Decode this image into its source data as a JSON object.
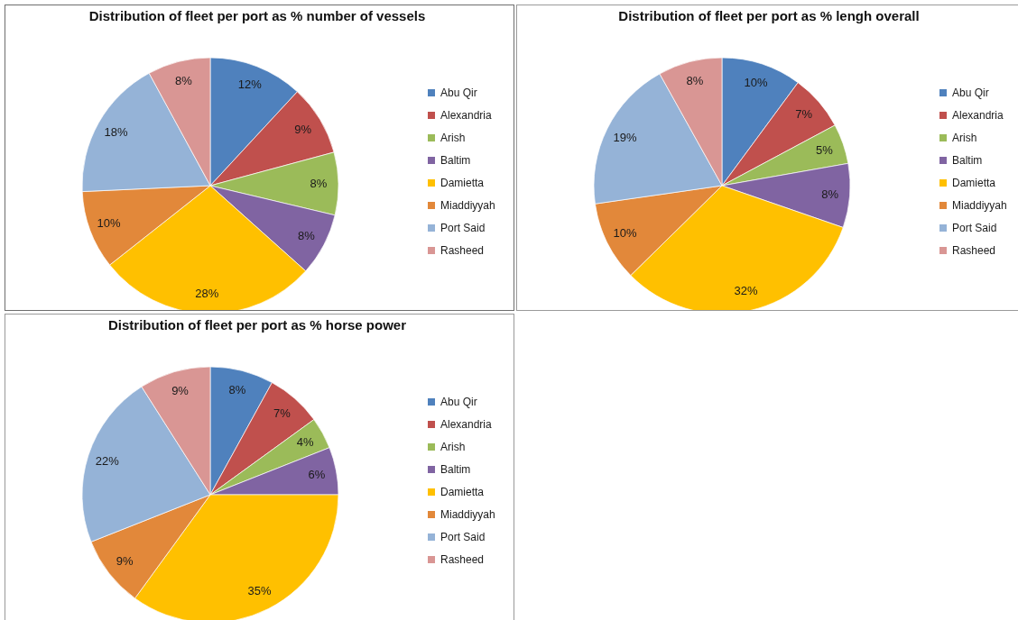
{
  "chart_data": [
    {
      "type": "pie",
      "title": "Distribution of fleet per port as % number of vessels",
      "categories": [
        "Abu Qir",
        "Alexandria",
        "Arish",
        "Baltim",
        "Damietta",
        "Miaddiyyah",
        "Port Said",
        "Rasheed"
      ],
      "values": [
        12,
        9,
        8,
        8,
        28,
        10,
        18,
        8
      ],
      "value_labels": [
        "12%",
        "9%",
        "8%",
        "8%",
        "28%",
        "10%",
        "18%",
        "8%"
      ],
      "colors": [
        "#4f81bd",
        "#c0504d",
        "#9bbb59",
        "#8064a2",
        "#ffc000",
        "#e2883a",
        "#95b3d7",
        "#d99694"
      ],
      "legend": "right"
    },
    {
      "type": "pie",
      "title": "Distribution of fleet per port as % lengh overall",
      "categories": [
        "Abu Qir",
        "Alexandria",
        "Arish",
        "Baltim",
        "Damietta",
        "Miaddiyyah",
        "Port Said",
        "Rasheed"
      ],
      "values": [
        10,
        7,
        5,
        8,
        32,
        10,
        19,
        8
      ],
      "value_labels": [
        "10%",
        "7%",
        "5%",
        "8%",
        "32%",
        "10%",
        "19%",
        "8%"
      ],
      "colors": [
        "#4f81bd",
        "#c0504d",
        "#9bbb59",
        "#8064a2",
        "#ffc000",
        "#e2883a",
        "#95b3d7",
        "#d99694"
      ],
      "legend": "right"
    },
    {
      "type": "pie",
      "title": "Distribution of fleet per port as % horse power",
      "categories": [
        "Abu Qir",
        "Alexandria",
        "Arish",
        "Baltim",
        "Damietta",
        "Miaddiyyah",
        "Port Said",
        "Rasheed"
      ],
      "values": [
        8,
        7,
        4,
        6,
        35,
        9,
        22,
        9
      ],
      "value_labels": [
        "8%",
        "7%",
        "4%",
        "6%",
        "35%",
        "9%",
        "22%",
        "9%"
      ],
      "colors": [
        "#4f81bd",
        "#c0504d",
        "#9bbb59",
        "#8064a2",
        "#ffc000",
        "#e2883a",
        "#95b3d7",
        "#d99694"
      ],
      "legend": "right"
    }
  ]
}
